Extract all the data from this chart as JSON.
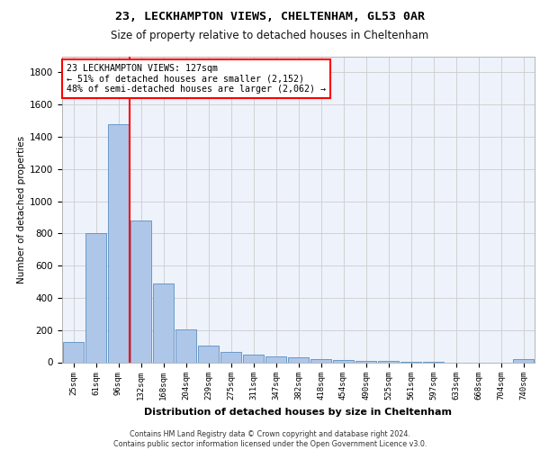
{
  "title1": "23, LECKHAMPTON VIEWS, CHELTENHAM, GL53 0AR",
  "title2": "Size of property relative to detached houses in Cheltenham",
  "xlabel": "Distribution of detached houses by size in Cheltenham",
  "ylabel": "Number of detached properties",
  "bar_labels": [
    "25sqm",
    "61sqm",
    "96sqm",
    "132sqm",
    "168sqm",
    "204sqm",
    "239sqm",
    "275sqm",
    "311sqm",
    "347sqm",
    "382sqm",
    "418sqm",
    "454sqm",
    "490sqm",
    "525sqm",
    "561sqm",
    "597sqm",
    "633sqm",
    "668sqm",
    "704sqm",
    "740sqm"
  ],
  "bar_values": [
    125,
    800,
    1480,
    880,
    490,
    205,
    105,
    65,
    45,
    35,
    30,
    20,
    15,
    10,
    8,
    5,
    5,
    0,
    0,
    0,
    20
  ],
  "bar_color": "#aec6e8",
  "bar_edge_color": "#5a8fc2",
  "grid_color": "#cccccc",
  "background_color": "#eef2fb",
  "annotation_title": "23 LECKHAMPTON VIEWS: 127sqm",
  "annotation_line1": "← 51% of detached houses are smaller (2,152)",
  "annotation_line2": "48% of semi-detached houses are larger (2,062) →",
  "ylim": [
    0,
    1900
  ],
  "yticks": [
    0,
    200,
    400,
    600,
    800,
    1000,
    1200,
    1400,
    1600,
    1800
  ],
  "footer1": "Contains HM Land Registry data © Crown copyright and database right 2024.",
  "footer2": "Contains public sector information licensed under the Open Government Licence v3.0."
}
